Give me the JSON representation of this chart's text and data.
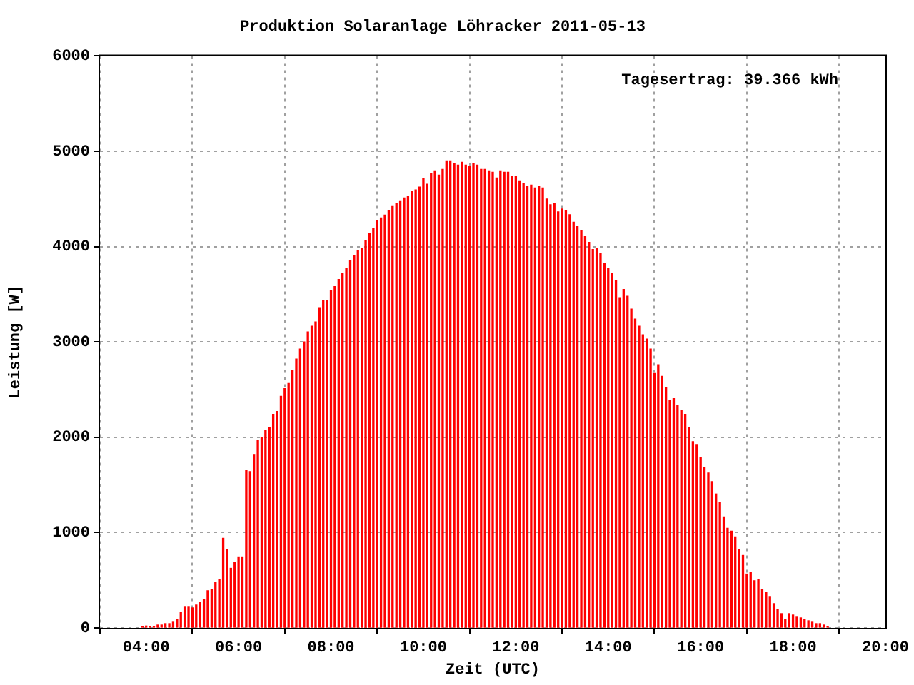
{
  "chart_data": {
    "type": "bar",
    "title": "Produktion Solaranlage Löhracker 2011-05-13",
    "xlabel": "Zeit (UTC)",
    "ylabel": "Leistung [W]",
    "annotations": [
      "Tagesertrag: 39.366 kWh"
    ],
    "x": [
      3.917,
      4.0,
      4.083,
      4.167,
      4.25,
      4.333,
      4.417,
      4.5,
      4.583,
      4.667,
      4.75,
      4.833,
      4.917,
      5.0,
      5.083,
      5.167,
      5.25,
      5.333,
      5.417,
      5.5,
      5.583,
      5.667,
      5.75,
      5.833,
      5.917,
      6.0,
      6.083,
      6.167,
      6.25,
      6.333,
      6.417,
      6.5,
      6.583,
      6.667,
      6.75,
      6.833,
      6.917,
      7.0,
      7.083,
      7.167,
      7.25,
      7.333,
      7.417,
      7.5,
      7.583,
      7.667,
      7.75,
      7.833,
      7.917,
      8.0,
      8.083,
      8.167,
      8.25,
      8.333,
      8.417,
      8.5,
      8.583,
      8.667,
      8.75,
      8.833,
      8.917,
      9.0,
      9.083,
      9.167,
      9.25,
      9.333,
      9.417,
      9.5,
      9.583,
      9.667,
      9.75,
      9.833,
      9.917,
      10.0,
      10.083,
      10.167,
      10.25,
      10.333,
      10.417,
      10.5,
      10.583,
      10.667,
      10.75,
      10.833,
      10.917,
      11.0,
      11.083,
      11.167,
      11.25,
      11.333,
      11.417,
      11.5,
      11.583,
      11.667,
      11.75,
      11.833,
      11.917,
      12.0,
      12.083,
      12.167,
      12.25,
      12.333,
      12.417,
      12.5,
      12.583,
      12.667,
      12.75,
      12.833,
      12.917,
      13.0,
      13.083,
      13.167,
      13.25,
      13.333,
      13.417,
      13.5,
      13.583,
      13.667,
      13.75,
      13.833,
      13.917,
      14.0,
      14.083,
      14.167,
      14.25,
      14.333,
      14.417,
      14.5,
      14.583,
      14.667,
      14.75,
      14.833,
      14.917,
      15.0,
      15.083,
      15.167,
      15.25,
      15.333,
      15.417,
      15.5,
      15.583,
      15.667,
      15.75,
      15.833,
      15.917,
      16.0,
      16.083,
      16.167,
      16.25,
      16.333,
      16.417,
      16.5,
      16.583,
      16.667,
      16.75,
      16.833,
      16.917,
      17.0,
      17.083,
      17.167,
      17.25,
      17.333,
      17.417,
      17.5,
      17.583,
      17.667,
      17.75,
      17.833,
      17.917,
      18.0,
      18.083,
      18.167,
      18.25,
      18.333,
      18.417,
      18.5,
      18.583,
      18.667,
      18.75
    ],
    "series": [
      {
        "color": "#ff0000",
        "values": [
          15,
          20,
          15,
          15,
          30,
          30,
          45,
          45,
          60,
          90,
          165,
          225,
          225,
          210,
          240,
          270,
          300,
          390,
          405,
          480,
          505,
          940,
          820,
          625,
          685,
          745,
          745,
          1655,
          1640,
          1820,
          1970,
          2000,
          2075,
          2105,
          2240,
          2270,
          2430,
          2510,
          2565,
          2700,
          2820,
          2925,
          3000,
          3105,
          3165,
          3210,
          3360,
          3435,
          3435,
          3535,
          3580,
          3655,
          3715,
          3775,
          3850,
          3910,
          3955,
          3985,
          4060,
          4135,
          4195,
          4270,
          4300,
          4330,
          4375,
          4420,
          4450,
          4480,
          4510,
          4525,
          4580,
          4595,
          4625,
          4715,
          4655,
          4765,
          4795,
          4750,
          4810,
          4900,
          4900,
          4870,
          4855,
          4885,
          4855,
          4840,
          4870,
          4855,
          4810,
          4810,
          4795,
          4780,
          4720,
          4795,
          4780,
          4780,
          4735,
          4735,
          4690,
          4660,
          4630,
          4645,
          4615,
          4630,
          4615,
          4500,
          4440,
          4455,
          4365,
          4395,
          4380,
          4335,
          4255,
          4210,
          4165,
          4105,
          4045,
          3970,
          3985,
          3925,
          3820,
          3775,
          3715,
          3640,
          3465,
          3550,
          3480,
          3345,
          3240,
          3165,
          3075,
          3030,
          2925,
          2670,
          2760,
          2640,
          2520,
          2390,
          2405,
          2330,
          2285,
          2240,
          2105,
          1955,
          1925,
          1790,
          1685,
          1625,
          1535,
          1405,
          1315,
          1165,
          1045,
          1015,
          955,
          820,
          760,
          565,
          580,
          495,
          505,
          405,
          375,
          330,
          255,
          195,
          150,
          90,
          150,
          135,
          120,
          105,
          90,
          75,
          60,
          45,
          45,
          30,
          15
        ]
      }
    ],
    "xlim": [
      3,
      20
    ],
    "xticks": [
      {
        "value": 4,
        "label": "04:00"
      },
      {
        "value": 6,
        "label": "06:00"
      },
      {
        "value": 8,
        "label": "08:00"
      },
      {
        "value": 10,
        "label": "10:00"
      },
      {
        "value": 12,
        "label": "12:00"
      },
      {
        "value": 14,
        "label": "14:00"
      },
      {
        "value": 16,
        "label": "16:00"
      },
      {
        "value": 18,
        "label": "18:00"
      },
      {
        "value": 20,
        "label": "20:00"
      }
    ],
    "ylim": [
      0,
      6000
    ],
    "yticks": [
      0,
      1000,
      2000,
      3000,
      4000,
      5000,
      6000
    ],
    "grid": true,
    "legend": false
  }
}
